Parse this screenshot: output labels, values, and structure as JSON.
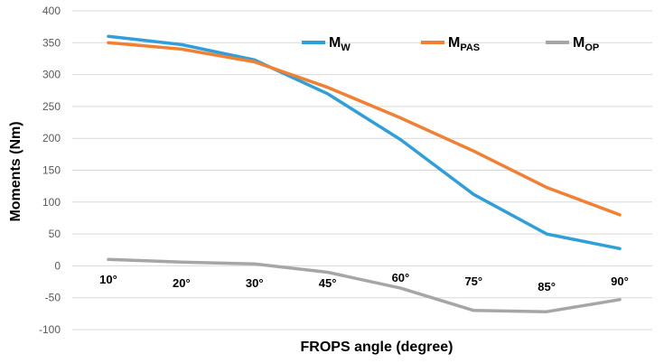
{
  "chart_data": {
    "type": "line",
    "xlabel": "FROPS angle (degree)",
    "ylabel": "Moments (Nm)",
    "ylim": [
      -100,
      400
    ],
    "yticks": [
      -100,
      -50,
      0,
      50,
      100,
      150,
      200,
      250,
      300,
      350,
      400
    ],
    "ytick_labels": [
      "-100",
      "-50",
      "0",
      "50",
      "100",
      "150",
      "200",
      "250",
      "300",
      "350",
      "400"
    ],
    "categories": [
      "10°",
      "20°",
      "30°",
      "45°",
      "60°",
      "75°",
      "85°",
      "90°"
    ],
    "grid": "horizontal",
    "legend_position": "top-right",
    "series": [
      {
        "name": "M",
        "sub": "W",
        "color": "#2E9FD8",
        "values": [
          360,
          347,
          323,
          270,
          198,
          112,
          50,
          27
        ]
      },
      {
        "name": "M",
        "sub": "PAS",
        "color": "#F28032",
        "values": [
          350,
          340,
          320,
          280,
          232,
          180,
          123,
          80
        ]
      },
      {
        "name": "M",
        "sub": "OP",
        "color": "#A6A6A6",
        "values": [
          10,
          6,
          3,
          -10,
          -35,
          -70,
          -72,
          -53
        ]
      }
    ]
  }
}
